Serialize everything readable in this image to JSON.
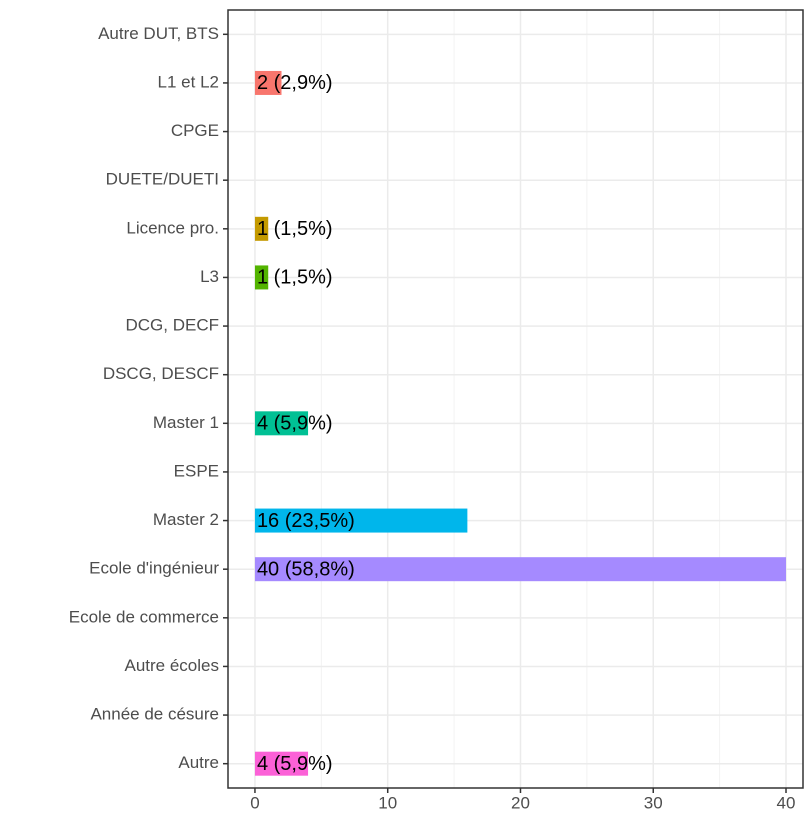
{
  "chart_data": {
    "type": "bar",
    "orientation": "horizontal",
    "categories": [
      "Autre DUT, BTS",
      "L1 et L2",
      "CPGE",
      "DUETE/DUETI",
      "Licence pro.",
      "L3",
      "DCG, DECF",
      "DSCG, DESCF",
      "Master 1",
      "ESPE",
      "Master 2",
      "Ecole d'ingénieur",
      "Ecole de commerce",
      "Autre écoles",
      "Année de césure",
      "Autre"
    ],
    "values": [
      0,
      2,
      0,
      0,
      1,
      1,
      0,
      0,
      4,
      0,
      16,
      40,
      0,
      0,
      0,
      4
    ],
    "value_labels": [
      null,
      "2 (2,9%)",
      null,
      null,
      "1 (1,5%)",
      "1 (1,5%)",
      null,
      null,
      "4 (5,9%)",
      null,
      "16 (23,5%)",
      "40 (58,8%)",
      null,
      null,
      null,
      "4 (5,9%)"
    ],
    "colors": [
      null,
      "#F8766D",
      null,
      null,
      "#C49A00",
      "#53B400",
      null,
      null,
      "#00C094",
      null,
      "#00B6EB",
      "#A58AFF",
      null,
      null,
      null,
      "#FB61D7"
    ],
    "xlim": [
      -2.03,
      41.28
    ],
    "xticks": [
      0,
      10,
      20,
      30,
      40
    ],
    "xminor": [
      5,
      15,
      25,
      35
    ],
    "grid": true
  }
}
